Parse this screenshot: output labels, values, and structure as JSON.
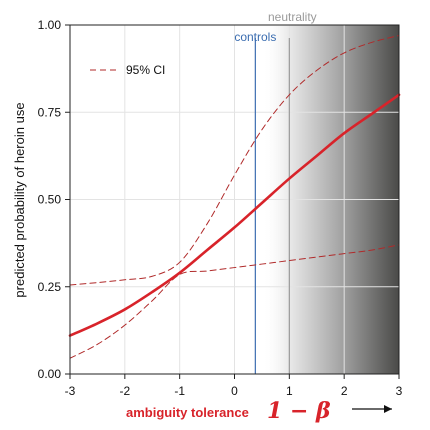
{
  "chart_data": {
    "type": "line",
    "ylabel": "predicted probability of heroin use",
    "xlabel": "ambiguity tolerance",
    "xlabel_formula": "1 − β",
    "xlim": [
      -3,
      3
    ],
    "ylim": [
      0,
      1
    ],
    "xticks": [
      -3,
      -2,
      -1,
      0,
      1,
      2,
      3
    ],
    "xtick_labels": [
      "-3",
      "-2",
      "-1",
      "0",
      "1",
      "2",
      "3"
    ],
    "yticks": [
      0,
      0.25,
      0.5,
      0.75,
      1.0
    ],
    "ytick_labels": [
      "0.00",
      "0.25",
      "0.50",
      "0.75",
      "1.00"
    ],
    "grid": true,
    "legend": {
      "position": "top-left",
      "label": "95% CI"
    },
    "series": [
      {
        "role": "prediction",
        "style": "solid",
        "color": "#d8232a",
        "x": [
          -3,
          -2.5,
          -2,
          -1.5,
          -1,
          -0.5,
          0,
          0.5,
          1,
          1.5,
          2,
          2.5,
          3
        ],
        "y": [
          0.11,
          0.145,
          0.185,
          0.235,
          0.29,
          0.355,
          0.42,
          0.49,
          0.56,
          0.625,
          0.69,
          0.745,
          0.8
        ]
      },
      {
        "role": "ci-upper",
        "style": "dashed",
        "color": "#b02a2a",
        "x": [
          -3,
          -2.5,
          -2,
          -1.5,
          -1,
          -0.5,
          0,
          0.5,
          1,
          1.5,
          2,
          2.5,
          3
        ],
        "y": [
          0.255,
          0.262,
          0.27,
          0.28,
          0.32,
          0.43,
          0.57,
          0.7,
          0.8,
          0.87,
          0.92,
          0.95,
          0.97
        ]
      },
      {
        "role": "ci-lower",
        "style": "dashed",
        "color": "#b02a2a",
        "x": [
          -3,
          -2.5,
          -2,
          -1.5,
          -1,
          -0.5,
          0,
          0.5,
          1,
          1.5,
          2,
          2.5,
          3
        ],
        "y": [
          0.045,
          0.085,
          0.14,
          0.21,
          0.285,
          0.295,
          0.305,
          0.315,
          0.325,
          0.335,
          0.345,
          0.355,
          0.37
        ]
      }
    ],
    "reference_lines": [
      {
        "label": "controls",
        "x": 0.38,
        "color": "#3b6db0"
      },
      {
        "label": "neutrality",
        "x": 1.0,
        "color": "#9a9a9a"
      }
    ],
    "shaded_region": {
      "x_from": 0.5,
      "x_to": 3,
      "gradient": "light-to-dark gray"
    },
    "colors": {
      "accent": "#d8232a",
      "controls": "#3b6db0",
      "neutrality": "#9a9a9a"
    }
  }
}
